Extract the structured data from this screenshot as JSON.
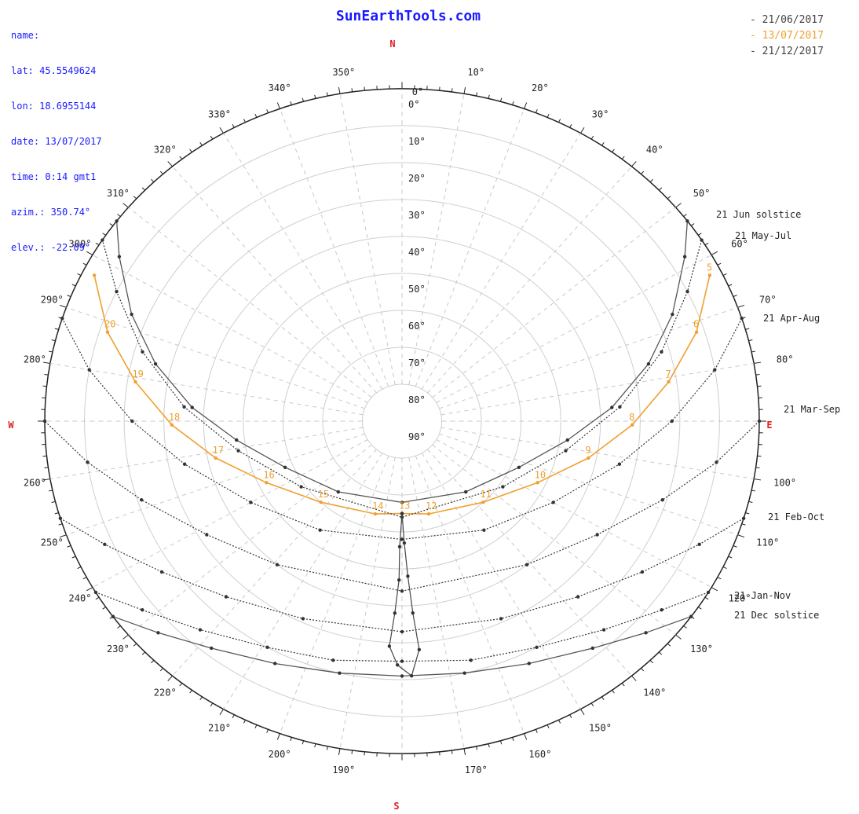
{
  "header": {
    "site": "SunEarthTools.com",
    "info": [
      "name:",
      "lat: 45.5549624",
      "lon: 18.6955144",
      "date: 13/07/2017",
      "time: 0:14 gmt1",
      "azim.: 350.74°",
      "elev.: -22.09°"
    ]
  },
  "legend": [
    {
      "label": "- 21/06/2017",
      "color": "#444444"
    },
    {
      "label": "- 13/07/2017",
      "color": "#f0a030"
    },
    {
      "label": "- 21/12/2017",
      "color": "#444444"
    }
  ],
  "chart_data": {
    "type": "polar",
    "compass": {
      "N": "N",
      "E": "E",
      "S": "S",
      "W": "W"
    },
    "azimuth_labels": [
      "0°",
      "10°",
      "20°",
      "30°",
      "40°",
      "50°",
      "60°",
      "70°",
      "80°",
      "90°",
      "100°",
      "110°",
      "120°",
      "130°",
      "140°",
      "150°",
      "160°",
      "170°",
      "180°",
      "190°",
      "200°",
      "210°",
      "220°",
      "230°",
      "240°",
      "250°",
      "260°",
      "270°",
      "280°",
      "290°",
      "300°",
      "310°",
      "320°",
      "330°",
      "340°",
      "350°"
    ],
    "elevation_labels": [
      "0°",
      "10°",
      "20°",
      "30°",
      "40°",
      "50°",
      "60°",
      "70°",
      "80°",
      "90°"
    ],
    "curve_labels": [
      "21 Jun  solstice",
      "21 May-Jul",
      "21 Apr-Aug",
      "21 Mar-Sep",
      "21 Feb-Oct",
      "21 Jan-Nov",
      "21 Dec  solstice"
    ],
    "paths": [
      {
        "name": "21 Jun  solstice",
        "style": "solid",
        "points": [
          [
            53,
            0
          ],
          [
            58,
            6
          ],
          [
            67,
            16
          ],
          [
            76,
            26
          ],
          [
            86,
            37
          ],
          [
            97,
            48
          ],
          [
            113,
            58
          ],
          [
            140,
            65
          ],
          [
            180,
            68
          ],
          [
            220,
            65
          ],
          [
            247,
            58
          ],
          [
            263,
            48
          ],
          [
            274,
            37
          ],
          [
            284,
            26
          ],
          [
            293,
            16
          ],
          [
            302,
            6
          ],
          [
            307,
            0
          ]
        ]
      },
      {
        "name": "13/07/2017",
        "style": "orange",
        "hours": [
          "5",
          "6",
          "7",
          "8",
          "9",
          "10",
          "11",
          "12",
          "13",
          "14",
          "15",
          "16",
          "17",
          "18",
          "19",
          "20"
        ],
        "points": [
          [
            63,
            3
          ],
          [
            72,
            12
          ],
          [
            81,
            22
          ],
          [
            91,
            32
          ],
          [
            102,
            42
          ],
          [
            116,
            52
          ],
          [
            137,
            60
          ],
          [
            165,
            64
          ],
          [
            180,
            65
          ],
          [
            195,
            64
          ],
          [
            223,
            60
          ],
          [
            244,
            52
          ],
          [
            258,
            42
          ],
          [
            269,
            32
          ],
          [
            279,
            22
          ],
          [
            288,
            12
          ],
          [
            297,
            3
          ]
        ]
      },
      {
        "name": "21 May-Jul",
        "style": "dotted",
        "points": [
          [
            57,
            0
          ],
          [
            64,
            10
          ],
          [
            74,
            22
          ],
          [
            86,
            35
          ],
          [
            101,
            48
          ],
          [
            125,
            59
          ],
          [
            180,
            64
          ],
          [
            235,
            59
          ],
          [
            259,
            48
          ],
          [
            274,
            35
          ],
          [
            286,
            22
          ],
          [
            296,
            10
          ],
          [
            303,
            0
          ]
        ]
      },
      {
        "name": "21 Apr-Aug",
        "style": "dotted",
        "points": [
          [
            72,
            0
          ],
          [
            80,
            10
          ],
          [
            90,
            22
          ],
          [
            102,
            34
          ],
          [
            120,
            46
          ],
          [
            145,
            54
          ],
          [
            180,
            58
          ],
          [
            215,
            54
          ],
          [
            240,
            46
          ],
          [
            258,
            34
          ],
          [
            270,
            22
          ],
          [
            280,
            10
          ],
          [
            288,
            0
          ]
        ]
      },
      {
        "name": "21 Mar-Sep",
        "style": "dotted",
        "points": [
          [
            90,
            0
          ],
          [
            98,
            10
          ],
          [
            108,
            21
          ],
          [
            122,
            32
          ],
          [
            141,
            40
          ],
          [
            180,
            44
          ],
          [
            219,
            40
          ],
          [
            238,
            32
          ],
          [
            252,
            21
          ],
          [
            262,
            10
          ],
          [
            270,
            0
          ]
        ]
      },
      {
        "name": "21 Feb-Oct",
        "style": "dotted",
        "points": [
          [
            107,
            0
          ],
          [
            114,
            8
          ],
          [
            124,
            17
          ],
          [
            137,
            25
          ],
          [
            155,
            31
          ],
          [
            180,
            33
          ],
          [
            205,
            31
          ],
          [
            223,
            25
          ],
          [
            236,
            17
          ],
          [
            246,
            8
          ],
          [
            253,
            0
          ]
        ]
      },
      {
        "name": "21 Jan-Nov",
        "style": "dotted",
        "points": [
          [
            121,
            0
          ],
          [
            128,
            7
          ],
          [
            138,
            14
          ],
          [
            151,
            20
          ],
          [
            165,
            23
          ],
          [
            180,
            25
          ],
          [
            195,
            23
          ],
          [
            209,
            20
          ],
          [
            222,
            14
          ],
          [
            232,
            7
          ],
          [
            239,
            0
          ]
        ]
      },
      {
        "name": "21 Dec  solstice",
        "style": "solid",
        "points": [
          [
            126,
            0
          ],
          [
            133,
            6
          ],
          [
            142,
            12
          ],
          [
            154,
            17
          ],
          [
            167,
            20
          ],
          [
            180,
            21
          ],
          [
            193,
            20
          ],
          [
            206,
            17
          ],
          [
            218,
            12
          ],
          [
            227,
            6
          ],
          [
            234,
            0
          ]
        ]
      },
      {
        "name": "analemma",
        "style": "loop",
        "points": [
          [
            180,
            65
          ],
          [
            181,
            56
          ],
          [
            181,
            47
          ],
          [
            182,
            38
          ],
          [
            183,
            29
          ],
          [
            181,
            24
          ],
          [
            178,
            21
          ],
          [
            176,
            28
          ],
          [
            177,
            38
          ],
          [
            178,
            48
          ],
          [
            179,
            57
          ],
          [
            180,
            65
          ]
        ]
      }
    ],
    "grid": true
  }
}
